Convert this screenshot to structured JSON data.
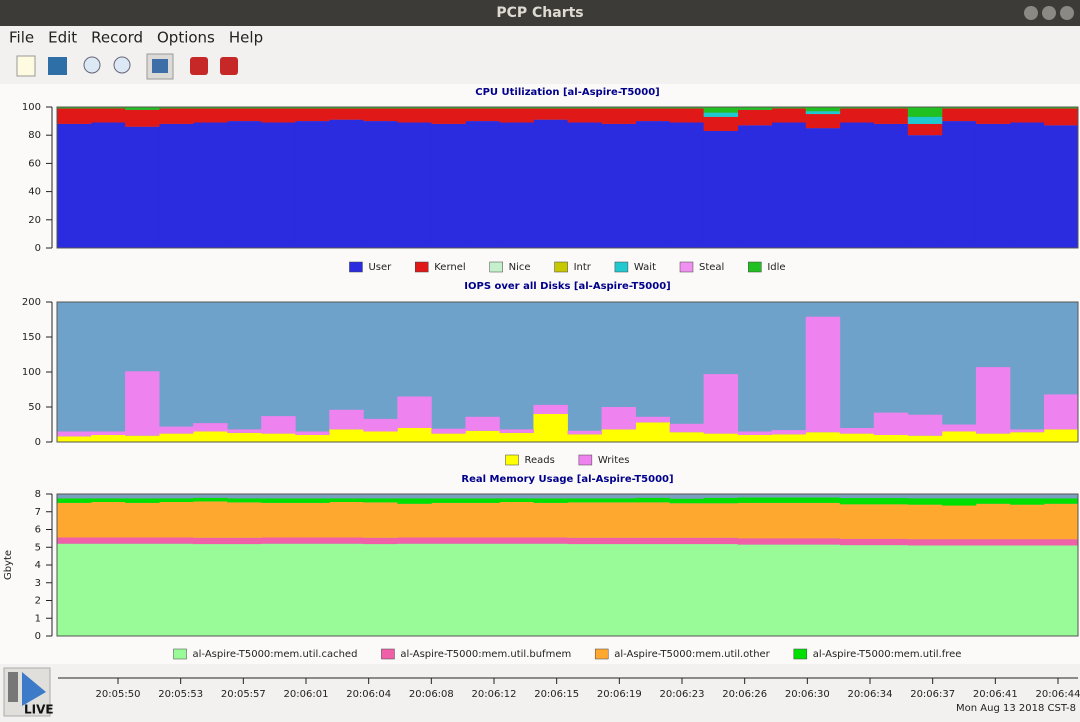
{
  "window": {
    "title": "PCP Charts"
  },
  "menu": [
    "File",
    "Edit",
    "Record",
    "Options",
    "Help"
  ],
  "chart_data": [
    {
      "type": "area",
      "stacked": true,
      "title": "CPU Utilization [al-Aspire-T5000]",
      "plot_background": "#6b9fc8",
      "ylim": [
        0,
        100
      ],
      "yticks": [
        0,
        20,
        40,
        60,
        80,
        100
      ],
      "series": [
        {
          "name": "User",
          "color": "#2b2be0",
          "values": [
            88,
            89,
            86,
            88,
            89,
            90,
            89,
            90,
            91,
            90,
            89,
            88,
            90,
            89,
            91,
            89,
            88,
            90,
            89,
            83,
            87,
            89,
            85,
            89,
            88,
            80,
            90,
            88,
            89,
            87
          ]
        },
        {
          "name": "Kernel",
          "color": "#e01818",
          "values": [
            11,
            10,
            12,
            11,
            10,
            9,
            10,
            9,
            8,
            9,
            10,
            11,
            9,
            10,
            8,
            10,
            11,
            9,
            10,
            10,
            11,
            10,
            10,
            10,
            11,
            8,
            9,
            11,
            10,
            12
          ]
        },
        {
          "name": "Nice",
          "color": "#c4f0cc",
          "values": [
            0,
            0,
            0,
            0,
            0,
            0,
            0,
            0,
            0,
            0,
            0,
            0,
            0,
            0,
            0,
            0,
            0,
            0,
            0,
            0,
            0,
            0,
            0,
            0,
            0,
            0,
            0,
            0,
            0,
            0
          ]
        },
        {
          "name": "Intr",
          "color": "#c8c800",
          "values": [
            0,
            0,
            0,
            0,
            0,
            0,
            0,
            0,
            0,
            0,
            0,
            0,
            0,
            0,
            0,
            0,
            0,
            0,
            0,
            0,
            0,
            0,
            0,
            0,
            0,
            0,
            0,
            0,
            0,
            0
          ]
        },
        {
          "name": "Wait",
          "color": "#20c8d0",
          "values": [
            0,
            0,
            0,
            0,
            0,
            0,
            0,
            0,
            0,
            0,
            0,
            0,
            0,
            0,
            0,
            0,
            0,
            0,
            0,
            3,
            0,
            0,
            2,
            0,
            0,
            5,
            0,
            0,
            0,
            0
          ]
        },
        {
          "name": "Steal",
          "color": "#f090f0",
          "values": [
            0,
            0,
            0,
            0,
            0,
            0,
            0,
            0,
            0,
            0,
            0,
            0,
            0,
            0,
            0,
            0,
            0,
            0,
            0,
            0,
            0,
            0,
            0,
            0,
            0,
            0,
            0,
            0,
            0,
            0
          ]
        },
        {
          "name": "Idle",
          "color": "#20c020",
          "values": [
            1,
            1,
            2,
            1,
            1,
            1,
            1,
            1,
            1,
            1,
            1,
            1,
            1,
            1,
            1,
            1,
            1,
            1,
            1,
            4,
            2,
            1,
            3,
            1,
            1,
            7,
            1,
            1,
            1,
            1
          ]
        }
      ]
    },
    {
      "type": "area",
      "stacked": true,
      "title": "IOPS over all Disks [al-Aspire-T5000]",
      "plot_background": "#6fa2ca",
      "ylim": [
        0,
        200
      ],
      "yticks": [
        0,
        50,
        100,
        150,
        200
      ],
      "series": [
        {
          "name": "Reads",
          "color": "#ffff00",
          "values": [
            8,
            10,
            9,
            12,
            15,
            13,
            12,
            10,
            18,
            15,
            20,
            12,
            16,
            13,
            40,
            11,
            18,
            28,
            14,
            12,
            10,
            11,
            14,
            12,
            10,
            9,
            15,
            12,
            14,
            18
          ]
        },
        {
          "name": "Writes",
          "color": "#ee82ee",
          "values": [
            7,
            5,
            92,
            10,
            12,
            5,
            25,
            5,
            28,
            18,
            45,
            7,
            20,
            5,
            13,
            5,
            32,
            8,
            12,
            85,
            5,
            6,
            165,
            8,
            32,
            30,
            10,
            95,
            4,
            50
          ]
        }
      ]
    },
    {
      "type": "area",
      "stacked": true,
      "title": "Real Memory Usage [al-Aspire-T5000]",
      "y_label": "Gbyte",
      "plot_background": "#7a9fc0",
      "ylim": [
        0,
        8
      ],
      "yticks": [
        0,
        1,
        2,
        3,
        4,
        5,
        6,
        7,
        8
      ],
      "series": [
        {
          "name": "al-Aspire-T5000:mem.util.cached",
          "color": "#98fb98",
          "values": [
            5.2,
            5.2,
            5.2,
            5.2,
            5.18,
            5.18,
            5.2,
            5.2,
            5.2,
            5.18,
            5.2,
            5.2,
            5.2,
            5.2,
            5.2,
            5.18,
            5.18,
            5.18,
            5.18,
            5.18,
            5.15,
            5.15,
            5.15,
            5.12,
            5.12,
            5.1,
            5.1,
            5.1,
            5.1,
            5.1
          ]
        },
        {
          "name": "al-Aspire-T5000:mem.util.bufmem",
          "color": "#f060a8",
          "values": [
            0.35,
            0.35,
            0.35,
            0.35,
            0.35,
            0.35,
            0.35,
            0.35,
            0.35,
            0.35,
            0.35,
            0.35,
            0.35,
            0.35,
            0.35,
            0.35,
            0.35,
            0.35,
            0.35,
            0.35,
            0.35,
            0.35,
            0.35,
            0.35,
            0.35,
            0.35,
            0.35,
            0.35,
            0.35,
            0.35
          ]
        },
        {
          "name": "al-Aspire-T5000:mem.util.other",
          "color": "#ffa830",
          "values": [
            1.95,
            2.0,
            1.95,
            2.0,
            2.05,
            2.0,
            1.95,
            1.95,
            2.0,
            2.0,
            1.9,
            1.95,
            1.95,
            2.0,
            1.95,
            2.0,
            2.0,
            2.0,
            1.95,
            1.95,
            2.0,
            2.0,
            2.0,
            1.95,
            1.95,
            1.95,
            1.9,
            2.0,
            1.95,
            2.0
          ]
        },
        {
          "name": "al-Aspire-T5000:mem.util.free",
          "color": "#00e000",
          "values": [
            0.25,
            0.2,
            0.25,
            0.2,
            0.2,
            0.22,
            0.25,
            0.25,
            0.2,
            0.22,
            0.3,
            0.25,
            0.25,
            0.2,
            0.25,
            0.22,
            0.22,
            0.25,
            0.25,
            0.3,
            0.3,
            0.3,
            0.3,
            0.35,
            0.35,
            0.35,
            0.4,
            0.3,
            0.35,
            0.3
          ]
        }
      ]
    }
  ],
  "timeline": {
    "ticks": [
      "20:05:50",
      "20:05:53",
      "20:05:57",
      "20:06:01",
      "20:06:04",
      "20:06:08",
      "20:06:12",
      "20:06:15",
      "20:06:19",
      "20:06:23",
      "20:06:26",
      "20:06:30",
      "20:06:34",
      "20:06:37",
      "20:06:41",
      "20:06:44"
    ],
    "date": "Mon Aug 13 2018 CST-8",
    "live": "LIVE"
  }
}
